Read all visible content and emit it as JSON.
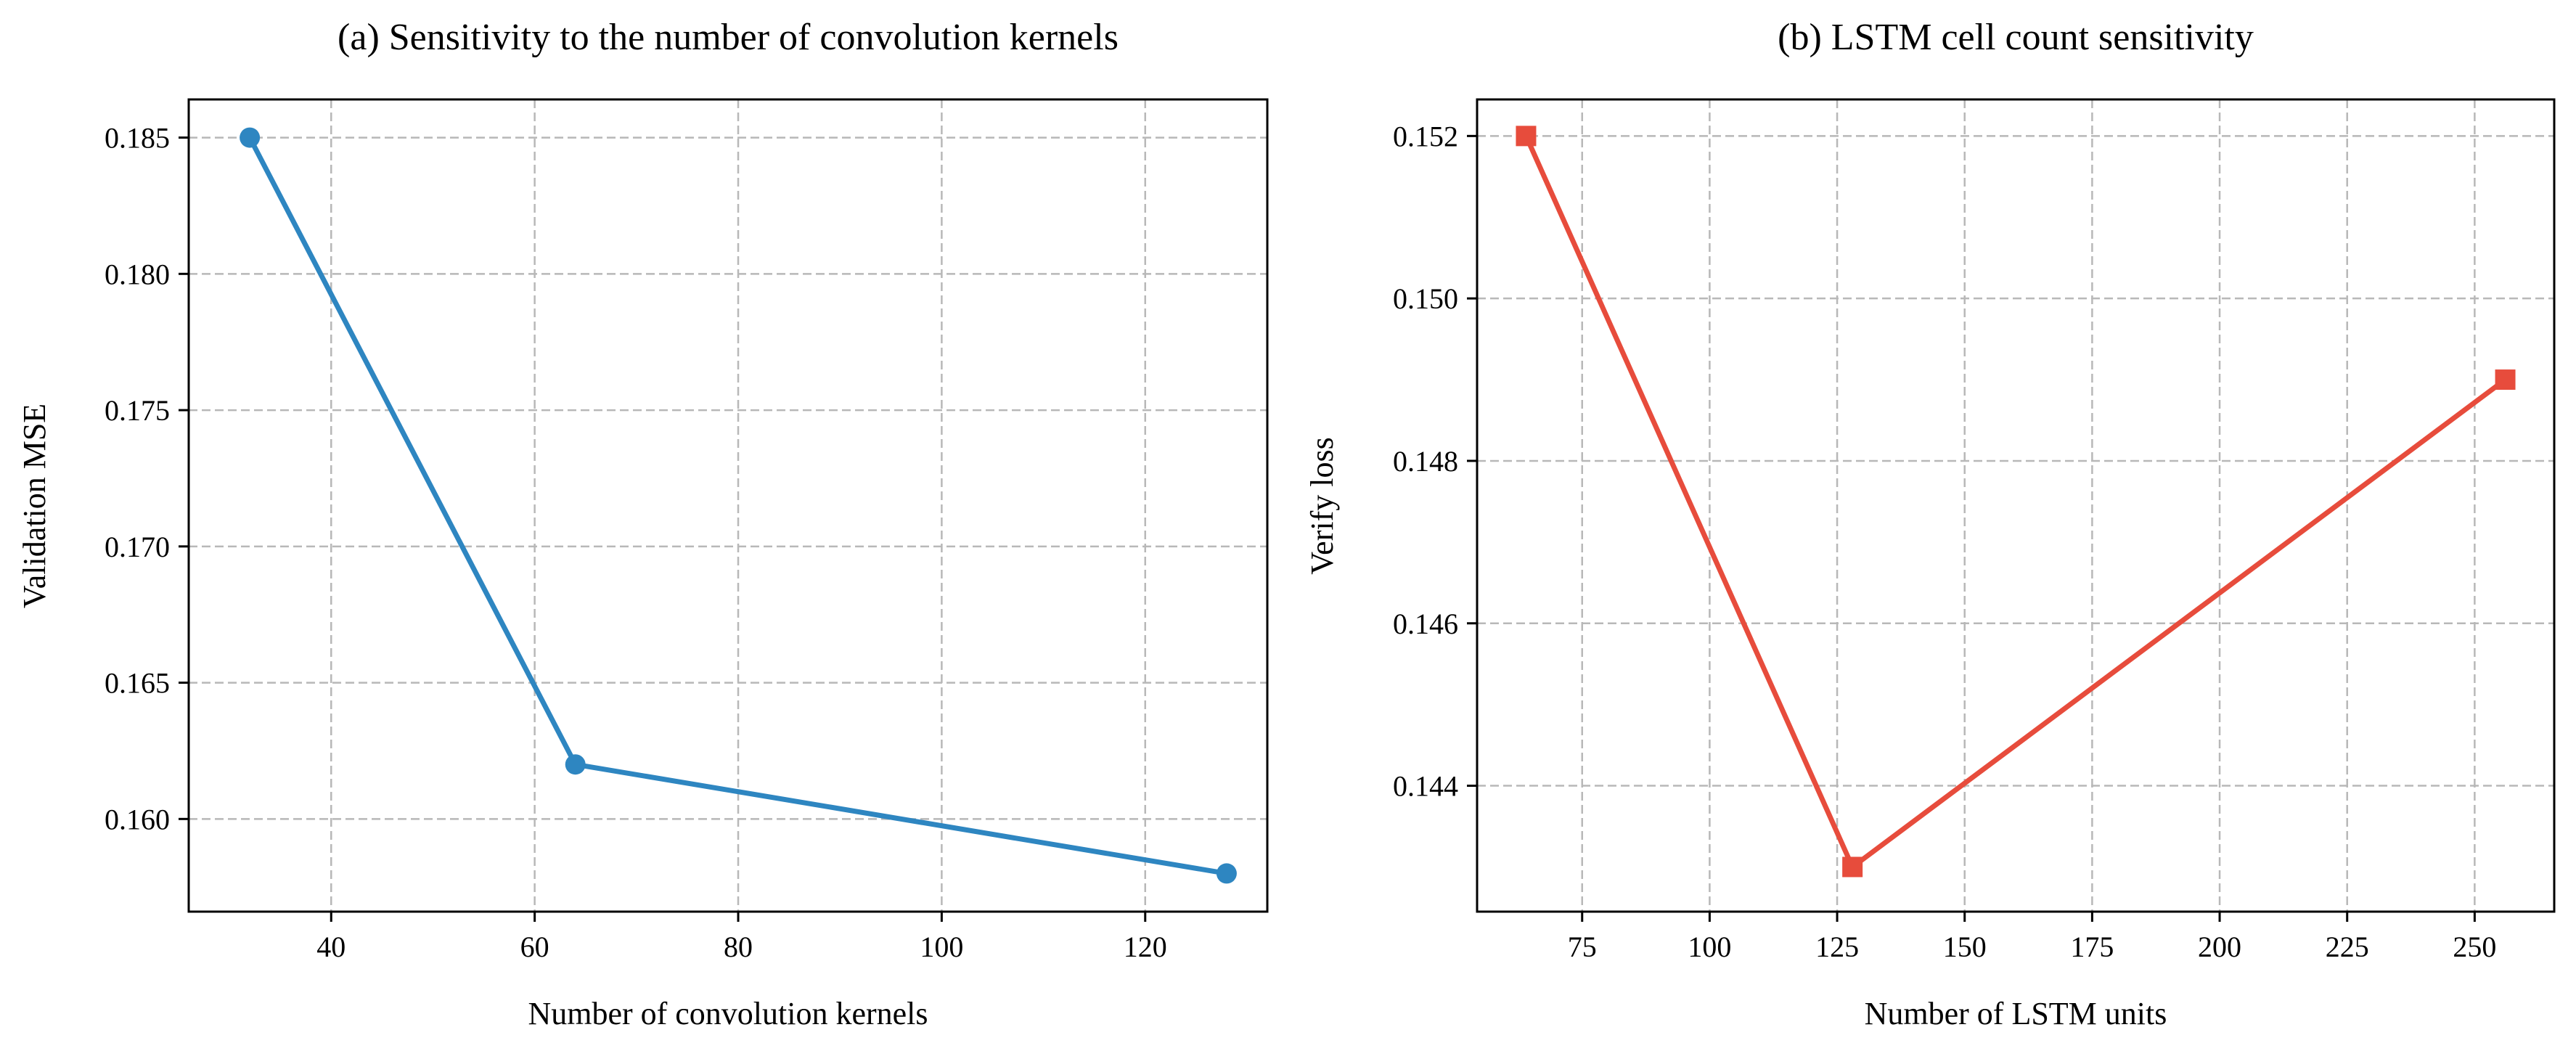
{
  "chart_data": [
    {
      "type": "line",
      "title": "(a) Sensitivity to the number of convolution kernels",
      "xlabel": "Number of convolution kernels",
      "ylabel": "Validation  MSE",
      "xlim": [
        26,
        132
      ],
      "ylim": [
        0.1566,
        0.1864
      ],
      "xticks": [
        40,
        60,
        80,
        100,
        120
      ],
      "yticks": [
        0.16,
        0.165,
        0.17,
        0.175,
        0.18,
        0.185
      ],
      "ytick_labels": [
        "0.160",
        "0.165",
        "0.170",
        "0.175",
        "0.180",
        "0.185"
      ],
      "grid": true,
      "series": [
        {
          "x": [
            32,
            64,
            128
          ],
          "values": [
            0.185,
            0.162,
            0.158
          ],
          "color": "#2e86c1",
          "marker": "circle"
        }
      ]
    },
    {
      "type": "line",
      "title": "(b) LSTM cell count sensitivity",
      "xlabel": "Number of LSTM units",
      "ylabel": "Verify loss",
      "xlim": [
        54.4,
        265.6
      ],
      "ylim": [
        0.14245,
        0.15245
      ],
      "xticks": [
        75,
        100,
        125,
        150,
        175,
        200,
        225,
        250
      ],
      "yticks": [
        0.144,
        0.146,
        0.148,
        0.15,
        0.152
      ],
      "ytick_labels": [
        "0.144",
        "0.146",
        "0.148",
        "0.150",
        "0.152"
      ],
      "grid": true,
      "series": [
        {
          "x": [
            64,
            128,
            256
          ],
          "values": [
            0.152,
            0.143,
            0.149
          ],
          "color": "#e74c3c",
          "marker": "square"
        }
      ]
    }
  ]
}
